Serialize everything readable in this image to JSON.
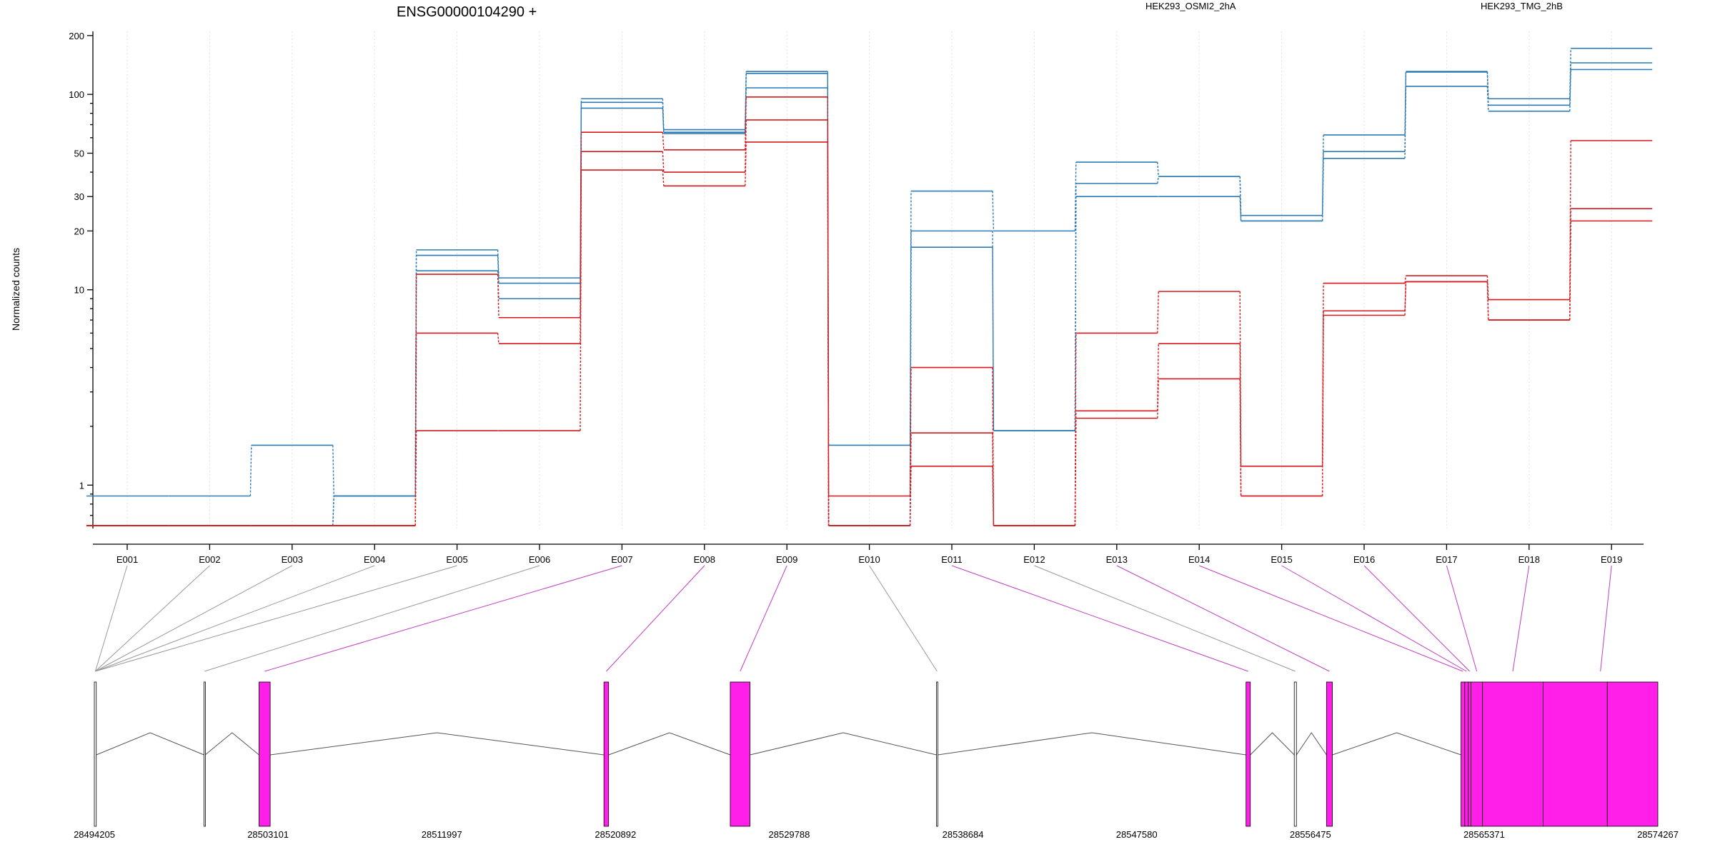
{
  "chart_data": {
    "type": "line",
    "title": "ENSG00000104290 +",
    "ylabel": "Normalized counts",
    "yscale": "log",
    "ylim": [
      0.6,
      210
    ],
    "yticks": [
      1,
      10,
      20,
      30,
      50,
      100,
      200
    ],
    "ytick_labels": [
      "1",
      "10",
      "20",
      "30",
      "50",
      "100",
      "200"
    ],
    "categories": [
      "E001",
      "E002",
      "E003",
      "E004",
      "E005",
      "E006",
      "E007",
      "E008",
      "E009",
      "E010",
      "E011",
      "E012",
      "E013",
      "E014",
      "E015",
      "E016",
      "E017",
      "E018",
      "E019"
    ],
    "legend": [
      "HEK293_OSMI2_2hA",
      "HEK293_TMG_2hB"
    ],
    "series": [
      {
        "name": "HEK293_TMG_2hB",
        "group": "blue",
        "values": [
          0.88,
          0.88,
          1.6,
          0.88,
          16,
          11.5,
          95,
          66,
          131,
          1.6,
          32,
          20,
          45,
          38,
          24,
          62,
          131,
          95,
          172
        ]
      },
      {
        "group": "blue",
        "values": [
          0.62,
          0.62,
          0.62,
          0.88,
          15,
          10.8,
          91,
          64,
          128,
          0.62,
          20,
          1.9,
          35,
          38,
          22.5,
          51,
          130,
          88,
          145
        ]
      },
      {
        "group": "blue",
        "values": [
          0.62,
          0.62,
          0.62,
          0.88,
          12.5,
          9,
          85,
          63,
          108,
          0.62,
          16.5,
          1.9,
          30,
          30,
          22.5,
          47,
          110,
          82,
          134
        ]
      },
      {
        "group": "red",
        "values": [
          0.62,
          0.62,
          0.62,
          0.62,
          12,
          7.2,
          64,
          52,
          97,
          0.88,
          4,
          0.62,
          6,
          9.8,
          1.25,
          10.8,
          11.8,
          8.9,
          58
        ]
      },
      {
        "group": "red",
        "values": [
          0.62,
          0.62,
          0.62,
          0.62,
          6,
          5.3,
          51,
          40,
          74,
          0.62,
          1.85,
          0.62,
          2.4,
          5.3,
          0.88,
          7.8,
          11,
          7,
          26
        ]
      },
      {
        "group": "red",
        "values": [
          0.62,
          0.62,
          0.62,
          0.62,
          1.9,
          1.9,
          41,
          34,
          57,
          0.62,
          1.25,
          0.62,
          2.2,
          3.5,
          0.88,
          7.4,
          11,
          7,
          22.5
        ]
      }
    ],
    "colors": {
      "red": "#d7191c",
      "blue": "#2c7bb6",
      "exon": "#ff1fe8",
      "mapping_gray": "#999999",
      "mapping_magenta": "#bf3fbf"
    },
    "genomic_axis": {
      "tick_labels": [
        "28494205",
        "28503101",
        "28511997",
        "28520892",
        "28529788",
        "28538684",
        "28547580",
        "28556475",
        "28565371",
        "28574267"
      ],
      "tick_values": [
        28494205,
        28503101,
        28511997,
        28520892,
        28529788,
        28538684,
        28547580,
        28556475,
        28565371,
        28574267
      ],
      "range": [
        28494205,
        28574267
      ]
    },
    "exon_features": [
      {
        "start": 28494205,
        "end": 28494305,
        "tested": false,
        "bin": "E001"
      },
      {
        "start": 28499820,
        "end": 28499880,
        "tested": false,
        "bin": "E002"
      },
      {
        "start": 28502640,
        "end": 28503210,
        "tested": true,
        "bin": "E003"
      },
      {
        "start": 28520300,
        "end": 28520540,
        "tested": true,
        "bin": "E004"
      },
      {
        "start": 28526770,
        "end": 28527780,
        "tested": true,
        "bin": "E005"
      },
      {
        "start": 28537330,
        "end": 28537390,
        "tested": false,
        "bin": "E006"
      },
      {
        "start": 28553180,
        "end": 28553400,
        "tested": true,
        "bin": "E007"
      },
      {
        "start": 28555650,
        "end": 28555760,
        "tested": false,
        "bin": "E008"
      },
      {
        "start": 28557300,
        "end": 28557600,
        "tested": true,
        "bin": "E009"
      },
      {
        "start": 28564190,
        "end": 28564380,
        "tested": true,
        "bin": "E010"
      },
      {
        "start": 28564380,
        "end": 28564560,
        "tested": true,
        "bin": "E011"
      },
      {
        "start": 28564560,
        "end": 28564700,
        "tested": true,
        "bin": "E012"
      },
      {
        "start": 28564700,
        "end": 28565290,
        "tested": true,
        "bin": "E013"
      },
      {
        "start": 28565290,
        "end": 28568390,
        "tested": true,
        "bin": "E014"
      },
      {
        "start": 28568390,
        "end": 28571680,
        "tested": true,
        "bin": "E015"
      },
      {
        "start": 28571680,
        "end": 28574267,
        "tested": true,
        "bin": "E016"
      }
    ],
    "bin_mappings": [
      {
        "bin": "E001",
        "gstart": 28494205,
        "gend": 28494305,
        "tested": false
      },
      {
        "bin": "E002",
        "gstart": 28494205,
        "gend": 28494305,
        "tested": false
      },
      {
        "bin": "E003",
        "gstart": 28494205,
        "gend": 28494305,
        "tested": false
      },
      {
        "bin": "E004",
        "gstart": 28494205,
        "gend": 28494305,
        "tested": false
      },
      {
        "bin": "E005",
        "gstart": 28494205,
        "gend": 28494305,
        "tested": false
      },
      {
        "bin": "E006",
        "gstart": 28499820,
        "gend": 28499880,
        "tested": false
      },
      {
        "bin": "E007",
        "gstart": 28502640,
        "gend": 28503210,
        "tested": true
      },
      {
        "bin": "E008",
        "gstart": 28520300,
        "gend": 28520540,
        "tested": true
      },
      {
        "bin": "E009",
        "gstart": 28526770,
        "gend": 28527780,
        "tested": true
      },
      {
        "bin": "E010",
        "gstart": 28537330,
        "gend": 28537390,
        "tested": false
      },
      {
        "bin": "E011",
        "gstart": 28553180,
        "gend": 28553400,
        "tested": true
      },
      {
        "bin": "E012",
        "gstart": 28555650,
        "gend": 28555760,
        "tested": false
      },
      {
        "bin": "E013",
        "gstart": 28557300,
        "gend": 28557600,
        "tested": true
      },
      {
        "bin": "E014",
        "gstart": 28564190,
        "gend": 28564380,
        "tested": true
      },
      {
        "bin": "E015",
        "gstart": 28564380,
        "gend": 28564560,
        "tested": true
      },
      {
        "bin": "E016",
        "gstart": 28564560,
        "gend": 28564700,
        "tested": true
      },
      {
        "bin": "E017",
        "gstart": 28564700,
        "gend": 28565290,
        "tested": true
      },
      {
        "bin": "E018",
        "gstart": 28565290,
        "gend": 28568390,
        "tested": true
      },
      {
        "bin": "E019",
        "gstart": 28568390,
        "gend": 28574267,
        "tested": true
      }
    ]
  }
}
